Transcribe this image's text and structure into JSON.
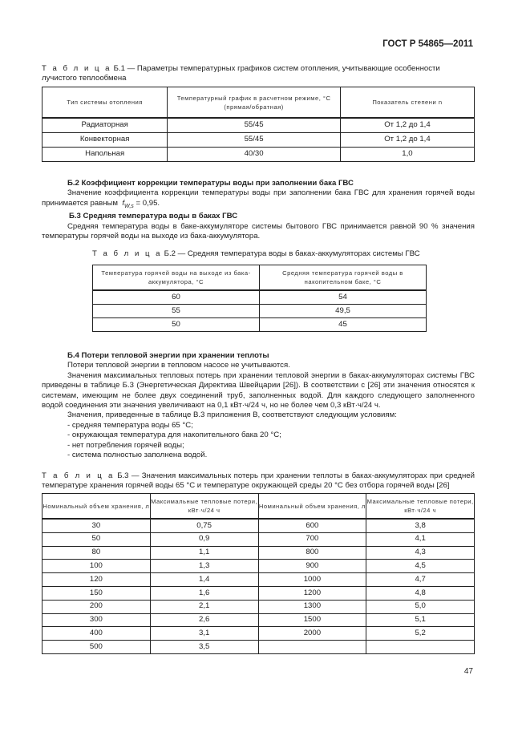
{
  "header": "ГОСТ Р 54865—2011",
  "t1": {
    "prefix": "Т а б л и ц а",
    "caption": " Б.1 — Параметры температурных графиков систем отопления, учитывающие особенности лучистого теплообмена",
    "headers": [
      "Тип системы отопления",
      "Температурный график в расчетном режиме, °С (прямая/обратная)",
      "Показатель степени n"
    ],
    "rows": [
      [
        "Радиаторная",
        "55/45",
        "От 1,2 до 1,4"
      ],
      [
        "Конвекторная",
        "55/45",
        "От 1,2 до 1,4"
      ],
      [
        "Напольная",
        "40/30",
        "1,0"
      ]
    ]
  },
  "s2": {
    "title": "Б.2 Коэффициент коррекции температуры воды при заполнении бака ГВС",
    "text": "Значение коэффициента коррекции температуры воды при заполнении бака ГВС для хранения горячей воды принимается равным",
    "formula": "f",
    "sub": "W,s",
    "value": " = 0,95."
  },
  "s3": {
    "title": "Б.3 Средняя температура воды в баках ГВС",
    "text": "Средняя температура воды в баке-аккумуляторе системы бытового ГВС принимается равной 90 % значения температуры горячей воды на выходе из бака-аккумулятора."
  },
  "t2": {
    "prefix": "Т а б л и ц а",
    "caption": " Б.2 — Средняя температура воды в баках-аккумуляторах системы ГВС",
    "headers": [
      "Температура горячей воды на выходе из бака-аккумулятора, °С",
      "Средняя температура горячей воды в накопительном баке, °С"
    ],
    "rows": [
      [
        "60",
        "54"
      ],
      [
        "55",
        "49,5"
      ],
      [
        "50",
        "45"
      ]
    ]
  },
  "s4": {
    "title": "Б.4 Потери тепловой энергии при хранении теплоты",
    "paras": [
      "Потери тепловой энергии в тепловом насосе не учитываются.",
      "Значения максимальных тепловых потерь при хранении тепловой энергии в баках-аккумуляторах системы ГВС приведены в таблице Б.3 (Энергетическая Директива Швейцарии [26]). В соответствии с [26] эти значения относятся к системам, имеющим не более двух соединений труб, заполненных водой. Для каждого следующего заполненного водой соединения эти значения увеличивают на 0,1 кВт·ч/24 ч, но не более чем 0,3 кВт·ч/24 ч.",
      "Значения, приведенные в таблице В.3 приложения В, соответствуют следующим условиям:"
    ],
    "list": [
      "- средняя температура воды 65 °С;",
      "- окружающая температура для накопительного бака 20 °С;",
      "- нет потребления горячей воды;",
      "- система полностью заполнена водой."
    ]
  },
  "t3": {
    "prefix": "Т а б л и ц а",
    "caption": " Б.3 — Значения максимальных потерь при хранении теплоты в баках-аккумуляторах при средней температуре хранения горячей воды 65 °С и температуре окружающей среды 20 °С без отбора горячей воды [26]",
    "headers": [
      "Номинальный объем хранения, л",
      "Максимальные тепловые потери, кВт·ч/24 ч",
      "Номинальный объем хранения, л",
      "Максимальные тепловые потери, кВт·ч/24 ч"
    ],
    "rows": [
      [
        "30",
        "0,75",
        "600",
        "3,8"
      ],
      [
        "50",
        "0,9",
        "700",
        "4,1"
      ],
      [
        "80",
        "1,1",
        "800",
        "4,3"
      ],
      [
        "100",
        "1,3",
        "900",
        "4,5"
      ],
      [
        "120",
        "1,4",
        "1000",
        "4,7"
      ],
      [
        "150",
        "1,6",
        "1200",
        "4,8"
      ],
      [
        "200",
        "2,1",
        "1300",
        "5,0"
      ],
      [
        "300",
        "2,6",
        "1500",
        "5,1"
      ],
      [
        "400",
        "3,1",
        "2000",
        "5,2"
      ],
      [
        "500",
        "3,5",
        "",
        ""
      ]
    ]
  },
  "page_number": "47"
}
